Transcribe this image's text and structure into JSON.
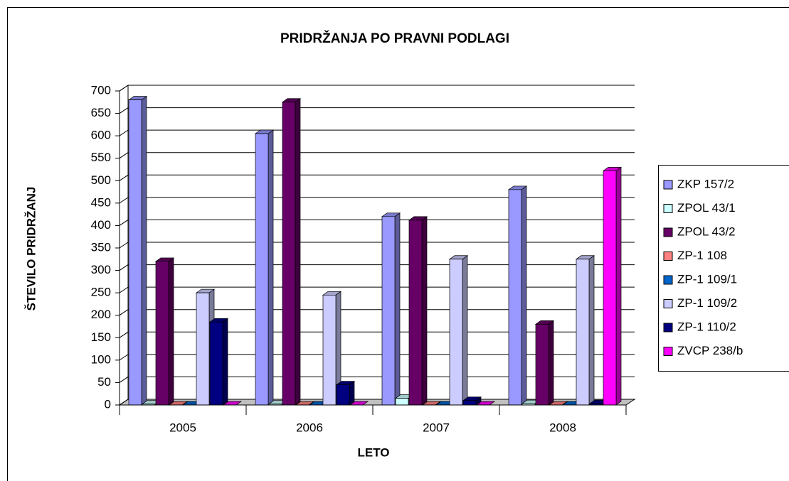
{
  "chart_data": {
    "type": "bar3d",
    "title": "PRIDRŽANJA PO PRAVNI PODLAGI",
    "x_label": "LETO",
    "y_label": "ŠTEVILO PRIDRŽANJ",
    "categories": [
      "2005",
      "2006",
      "2007",
      "2008"
    ],
    "series": [
      {
        "name": "ZKP 157/2",
        "color": "#9999ff",
        "values": [
          680,
          605,
          420,
          480
        ]
      },
      {
        "name": "ZPOL 43/1",
        "color": "#ccffff",
        "values": [
          2,
          2,
          15,
          3
        ]
      },
      {
        "name": "ZPOL 43/2",
        "color": "#660066",
        "values": [
          320,
          675,
          412,
          180
        ]
      },
      {
        "name": "ZP-1 108",
        "color": "#ff8080",
        "values": [
          0,
          0,
          0,
          0
        ]
      },
      {
        "name": "ZP-1 109/1",
        "color": "#0066cc",
        "values": [
          0,
          0,
          0,
          0
        ]
      },
      {
        "name": "ZP-1 109/2",
        "color": "#ccccff",
        "values": [
          250,
          245,
          325,
          325
        ]
      },
      {
        "name": "ZP-1 110/2",
        "color": "#000080",
        "values": [
          185,
          45,
          10,
          3
        ]
      },
      {
        "name": "ZVCP 238/b",
        "color": "#ff00ff",
        "values": [
          0,
          0,
          0,
          522
        ]
      }
    ],
    "ylim": [
      0,
      700
    ],
    "yticks": [
      0,
      50,
      100,
      150,
      200,
      250,
      300,
      350,
      400,
      450,
      500,
      550,
      600,
      650,
      700
    ],
    "grid": true,
    "legend": "right"
  }
}
